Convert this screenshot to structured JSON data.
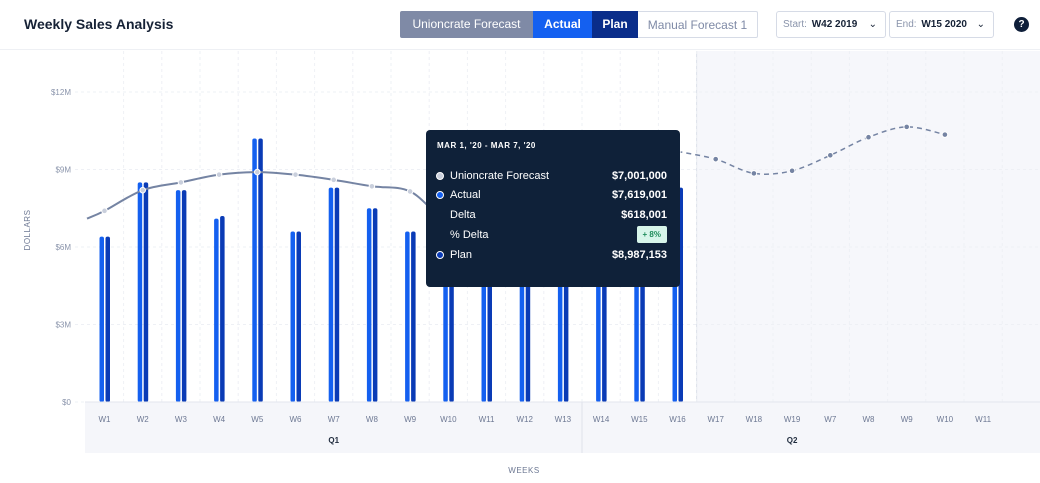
{
  "header": {
    "title": "Weekly Sales Analysis",
    "toggles": [
      "Unioncrate Forecast",
      "Actual",
      "Plan",
      "Manual Forecast 1"
    ],
    "start_label": "Start:",
    "start_value": "W42 2019",
    "end_label": "End:",
    "end_value": "W15 2020",
    "help": "?"
  },
  "colors": {
    "forecast": "#7584a3",
    "actual": "#1460f0",
    "plan": "#0a3bb6",
    "tooltip_bg": "#0f2139"
  },
  "chart_data": {
    "type": "bar",
    "ylabel": "DOLLARS",
    "xlabel": "WEEKS",
    "yticks": [
      "$0",
      "$3M",
      "$6M",
      "$9M",
      "$12M"
    ],
    "ylim": [
      0,
      12000000
    ],
    "categories": [
      "W1",
      "W2",
      "W3",
      "W4",
      "W5",
      "W6",
      "W7",
      "W8",
      "W9",
      "W10",
      "W11",
      "W12",
      "W13",
      "W14",
      "W15",
      "W16",
      "W17",
      "W18",
      "W19",
      "W7",
      "W8",
      "W9",
      "W10",
      "W11"
    ],
    "groups": [
      {
        "label": "Q1",
        "count": 13
      },
      {
        "label": "Q2",
        "count": 11
      }
    ],
    "series": [
      {
        "name": "Actual",
        "values": [
          6.4,
          8.5,
          8.2,
          7.1,
          10.2,
          6.6,
          8.3,
          7.5,
          6.6,
          7.619001,
          7.8,
          7.3,
          7.2,
          6.8,
          7.8,
          8.3,
          null,
          null,
          null,
          null,
          null,
          null,
          null,
          null
        ],
        "scale": 1000000
      },
      {
        "name": "Plan",
        "values": [
          6.4,
          8.5,
          8.2,
          7.2,
          10.2,
          6.6,
          8.3,
          7.5,
          6.6,
          8.987153,
          7.8,
          7.3,
          7.2,
          6.8,
          7.8,
          8.3,
          null,
          null,
          null,
          null,
          null,
          null,
          null,
          null
        ],
        "scale": 1000000
      },
      {
        "name": "Unioncrate Forecast",
        "values": [
          7.4,
          8.2,
          8.5,
          8.8,
          8.9,
          8.8,
          8.6,
          8.35,
          8.15,
          7.001,
          7.2,
          7.7,
          8.3,
          8.9,
          9.4,
          9.7,
          9.4,
          8.85,
          8.95,
          9.55,
          10.25,
          10.65,
          10.35,
          null
        ],
        "projected_from_index": 16,
        "scale": 1000000
      }
    ],
    "shaded_region_start": "W17",
    "grid": true
  },
  "tooltip": {
    "date": "MAR 1, '20 - MAR 7, '20",
    "rows": [
      {
        "label": "Unioncrate Forecast",
        "value": "$7,001,000"
      },
      {
        "label": "Actual",
        "value": "$7,619,001"
      },
      {
        "label": "Delta",
        "value": "$618,001"
      },
      {
        "label": "% Delta",
        "value": "+ 8%"
      },
      {
        "label": "Plan",
        "value": "$8,987,153"
      }
    ]
  }
}
